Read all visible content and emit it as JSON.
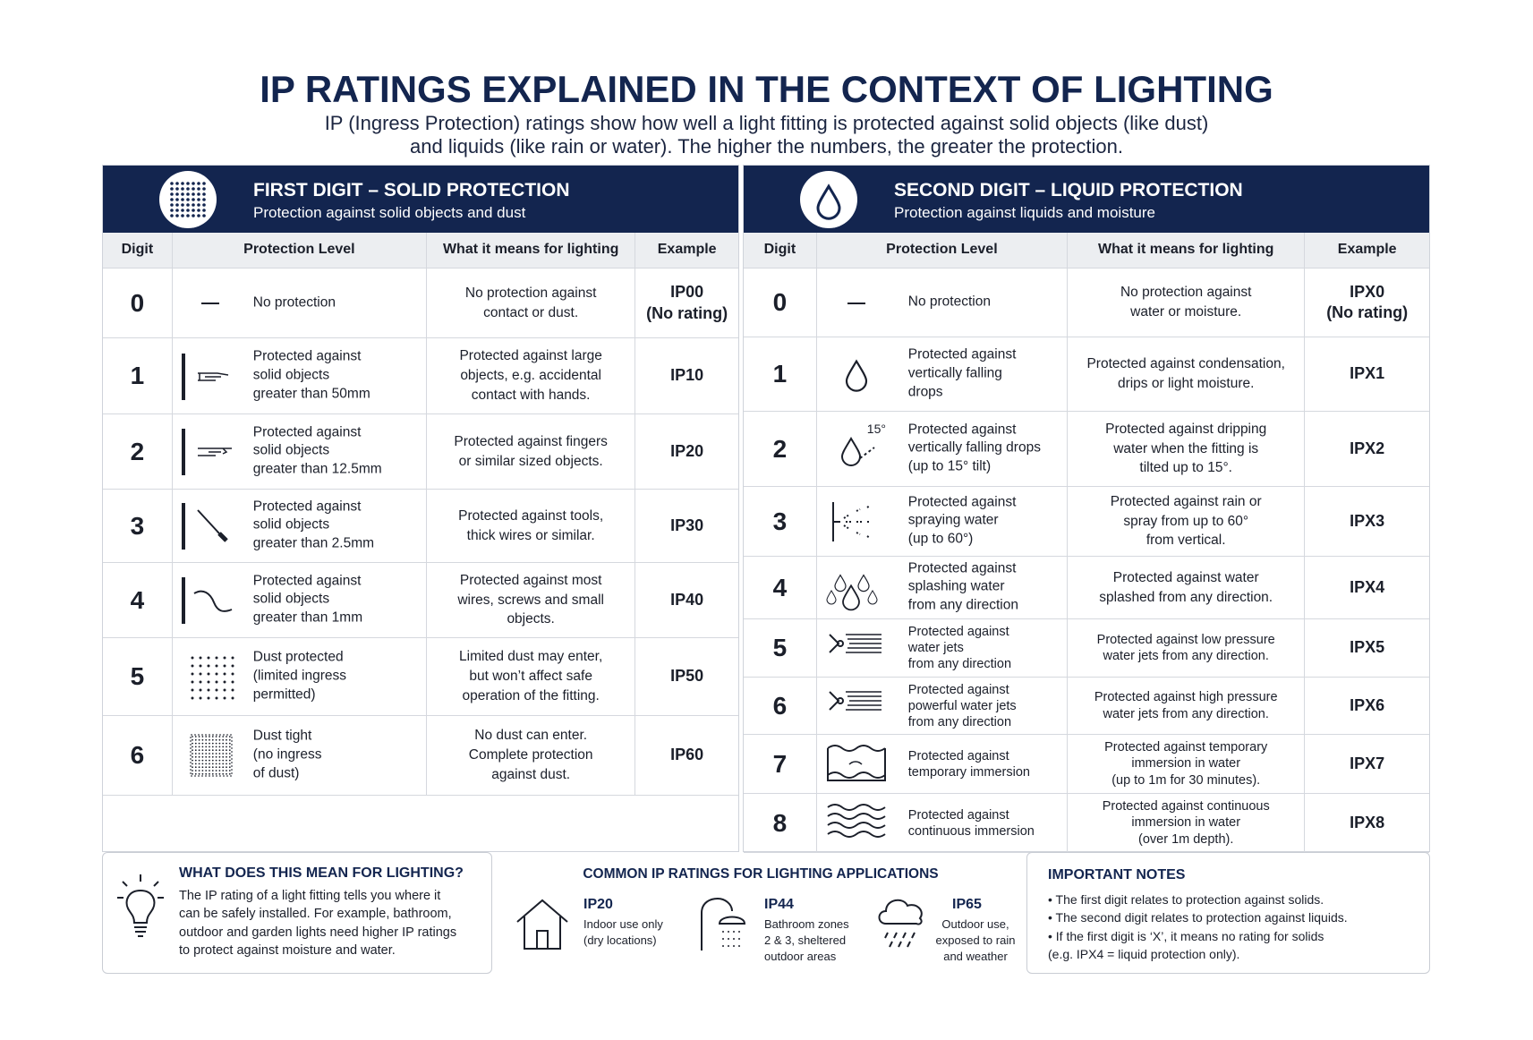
{
  "title": "IP RATINGS EXPLAINED IN THE CONTEXT OF LIGHTING",
  "subtitle": [
    "IP (Ingress Protection) ratings show how well a light fitting is protected against solid objects (like dust)",
    "and liquids (like rain or water). The higher the numbers, the greater the protection."
  ],
  "panels": [
    {
      "title": "FIRST DIGIT – SOLID PROTECTION",
      "subtitle": "Protection against solid objects and dust",
      "columns": [
        "Digit",
        "Protection Level",
        "What it means for lighting",
        "Example"
      ],
      "rows": [
        {
          "digit": "0",
          "protection": "No protection",
          "meaning": "No protection against\ncontact or dust.",
          "example": "IP00\n(No rating)"
        },
        {
          "digit": "1",
          "protection": "Protected against\nsolid objects\ngreater than 50mm",
          "meaning": "Protected against large\nobjects, e.g. accidental\ncontact with hands.",
          "example": "IP10"
        },
        {
          "digit": "2",
          "protection": "Protected against\nsolid objects\ngreater than 12.5mm",
          "meaning": "Protected against fingers\nor similar sized objects.",
          "example": "IP20"
        },
        {
          "digit": "3",
          "protection": "Protected against\nsolid objects\ngreater than 2.5mm",
          "meaning": "Protected against tools,\nthick wires or similar.",
          "example": "IP30"
        },
        {
          "digit": "4",
          "protection": "Protected against\nsolid objects\ngreater than 1mm",
          "meaning": "Protected against most\nwires, screws and small\nobjects.",
          "example": "IP40"
        },
        {
          "digit": "5",
          "protection": "Dust protected\n(limited ingress\npermitted)",
          "meaning": "Limited dust may enter,\nbut won’t affect safe\noperation of the fitting.",
          "example": "IP50"
        },
        {
          "digit": "6",
          "protection": "Dust tight\n(no ingress\nof dust)",
          "meaning": "No dust can enter.\nComplete protection\nagainst dust.",
          "example": "IP60"
        }
      ]
    },
    {
      "title": "SECOND DIGIT – LIQUID PROTECTION",
      "subtitle": "Protection against liquids and moisture",
      "columns": [
        "Digit",
        "Protection Level",
        "What it means for lighting",
        "Example"
      ],
      "rows": [
        {
          "digit": "0",
          "protection": "No protection",
          "meaning": "No protection against\nwater or moisture.",
          "example": "IPX0\n(No rating)"
        },
        {
          "digit": "1",
          "protection": "Protected against\nvertically falling\ndrops",
          "meaning": "Protected against condensation,\ndrips or light moisture.",
          "example": "IPX1"
        },
        {
          "digit": "2",
          "icon_label": "15°",
          "protection": "Protected against\nvertically falling drops\n(up to 15° tilt)",
          "meaning": "Protected against dripping\nwater when the fitting is\ntilted up to 15°.",
          "example": "IPX2"
        },
        {
          "digit": "3",
          "protection": "Protected against\nspraying water\n(up to 60°)",
          "meaning": "Protected against rain or\nspray from up to 60°\nfrom vertical.",
          "example": "IPX3"
        },
        {
          "digit": "4",
          "protection": "Protected against\nsplashing water\nfrom any direction",
          "meaning": "Protected against water\nsplashed from any direction.",
          "example": "IPX4"
        },
        {
          "digit": "5",
          "protection": "Protected against\nwater jets\nfrom any direction",
          "meaning": "Protected against low pressure\nwater jets from any direction.",
          "example": "IPX5"
        },
        {
          "digit": "6",
          "protection": "Protected against\npowerful water jets\nfrom any direction",
          "meaning": "Protected against high pressure\nwater jets from any direction.",
          "example": "IPX6"
        },
        {
          "digit": "7",
          "protection": "Protected against\ntemporary immersion",
          "meaning": "Protected against temporary\nimmersion in water\n(up to 1m for 30 minutes).",
          "example": "IPX7"
        },
        {
          "digit": "8",
          "protection": "Protected against\ncontinuous immersion",
          "meaning": "Protected against continuous\nimmersion in water\n(over 1m depth).",
          "example": "IPX8"
        }
      ]
    }
  ],
  "lighting_box": {
    "title": "WHAT DOES THIS MEAN FOR LIGHTING?",
    "text": "The IP rating of a light fitting tells you where it\ncan be safely installed. For example, bathroom,\noutdoor and garden lights need higher IP ratings\nto protect against moisture and water."
  },
  "common": {
    "title": "COMMON IP RATINGS FOR LIGHTING APPLICATIONS",
    "items": [
      {
        "code": "IP20",
        "desc": "Indoor use only\n(dry locations)"
      },
      {
        "code": "IP44",
        "desc": "Bathroom zones\n2 & 3, sheltered\noutdoor areas"
      },
      {
        "code": "IP65",
        "desc": "Outdoor use,\nexposed to rain\nand weather"
      }
    ]
  },
  "notes": {
    "title": "IMPORTANT NOTES",
    "items": [
      "• The first digit relates to protection against solids.",
      "• The second digit relates to protection against liquids.",
      "• If the first digit is ‘X’, it means no rating for solids\n(e.g. IPX4 = liquid protection only)."
    ]
  }
}
